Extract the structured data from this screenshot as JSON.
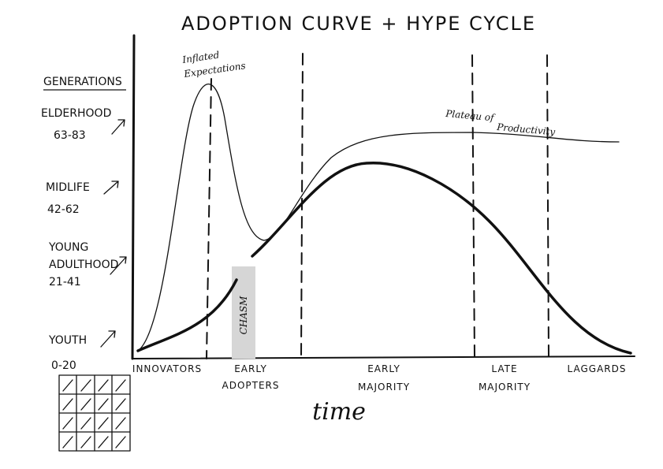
{
  "title": "ADOPTION CURVE + HYPE CYCLE",
  "generations": {
    "heading": "GENERATIONS",
    "items": [
      {
        "name": [
          "ELDERHOOD"
        ],
        "ages": "63-83"
      },
      {
        "name": [
          "MIDLIFE"
        ],
        "ages": "42-62"
      },
      {
        "name": [
          "YOUNG",
          "ADULTHOOD"
        ],
        "ages": "21-41"
      },
      {
        "name": [
          "YOUTH"
        ],
        "ages": "0-20"
      }
    ]
  },
  "annotations": {
    "peak": [
      "Inflated",
      "Expectations"
    ],
    "plateau": [
      "Plateau of",
      "Productivity"
    ],
    "chasm": "CHASM"
  },
  "phases": [
    [
      "INNOVATORS"
    ],
    [
      "EARLY",
      "ADOPTERS"
    ],
    [
      "EARLY",
      "MAJORITY"
    ],
    [
      "LATE",
      "MAJORITY"
    ],
    [
      "LAGGARDS"
    ]
  ],
  "axis_label": "time"
}
